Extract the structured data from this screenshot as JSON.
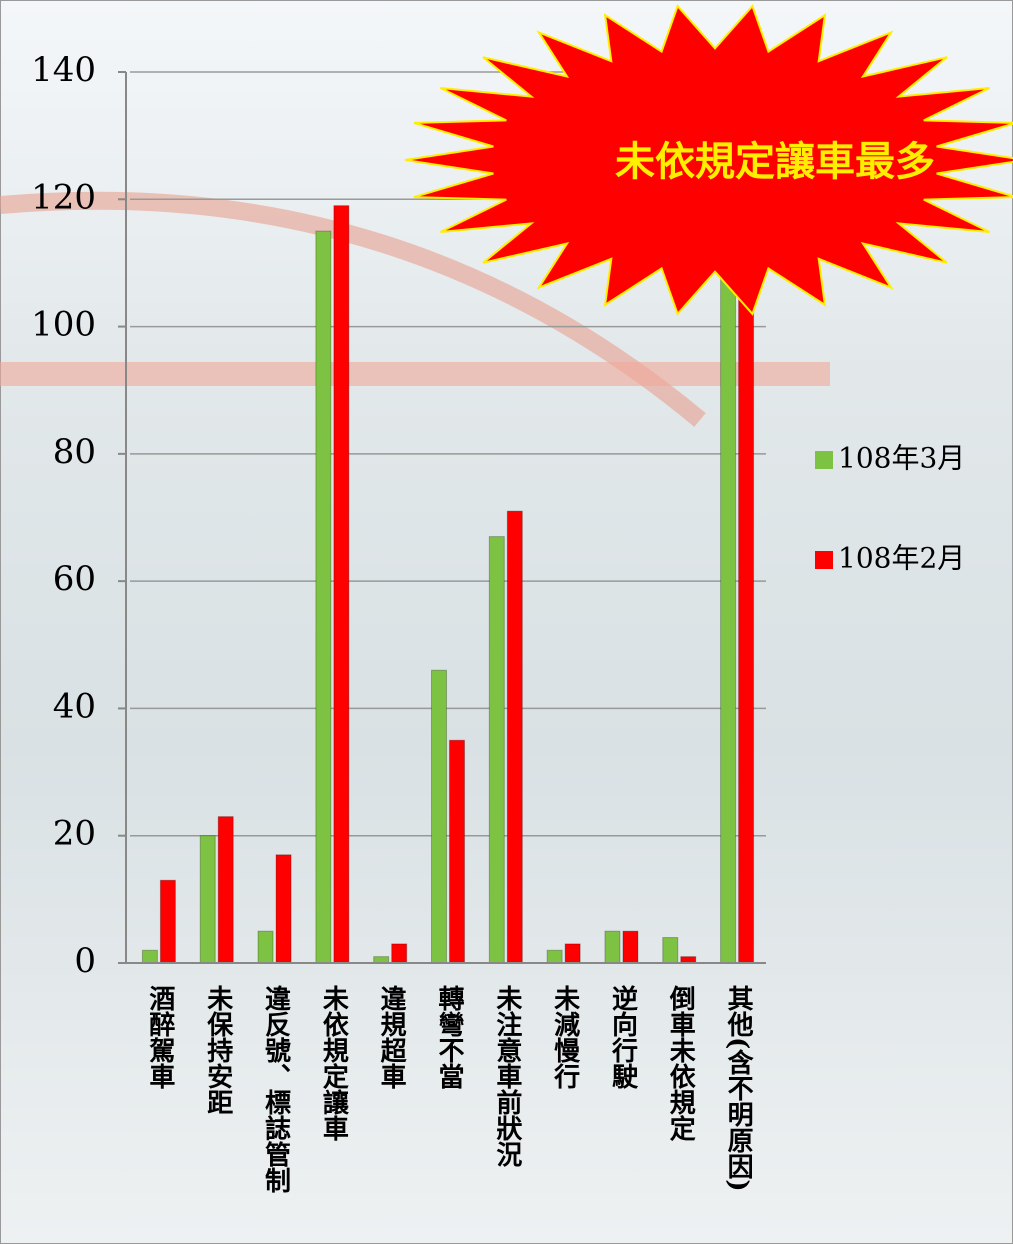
{
  "chart_data": {
    "type": "bar",
    "annotation": "未依規定讓車最多",
    "categories": [
      "酒醉駕車",
      "未保持安距",
      "違反號、標誌管制",
      "未依規定讓車",
      "違規超車",
      "轉彎不當",
      "未注意車前狀況",
      "未減慢行",
      "逆向行駛",
      "倒車未依規定",
      "其他(含不明原因)"
    ],
    "series": [
      {
        "name": "108年3月",
        "color": "#7dc242",
        "values": [
          2,
          20,
          5,
          115,
          1,
          46,
          67,
          2,
          5,
          4,
          126
        ]
      },
      {
        "name": "108年2月",
        "color": "#ff0000",
        "values": [
          13,
          23,
          17,
          119,
          3,
          35,
          71,
          3,
          5,
          1,
          133
        ]
      }
    ],
    "ylim": [
      0,
      140
    ],
    "yticks": [
      0,
      20,
      40,
      60,
      80,
      100,
      120,
      140
    ],
    "grid": true,
    "legend": "right"
  }
}
